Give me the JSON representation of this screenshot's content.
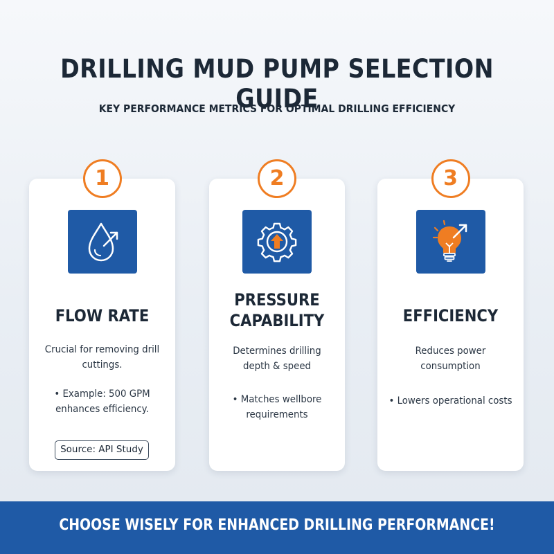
{
  "header": {
    "title": "DRILLING MUD PUMP SELECTION GUIDE",
    "subtitle": "KEY PERFORMANCE METRICS FOR OPTIMAL DRILLING EFFICIENCY"
  },
  "cards": [
    {
      "number": "1",
      "icon": "water-drop-arrow-icon",
      "title": "FLOW RATE",
      "description": "Crucial for removing drill cuttings.",
      "bullet": "• Example: 500 GPM enhances efficiency.",
      "source": "Source: API Study"
    },
    {
      "number": "2",
      "icon": "gear-arrow-up-icon",
      "title": "PRESSURE CAPABILITY",
      "description": "Determines drilling depth & speed",
      "bullet": "• Matches wellbore requirements"
    },
    {
      "number": "3",
      "icon": "lightbulb-arrow-icon",
      "title": "EFFICIENCY",
      "description": "Reduces power consumption",
      "bullet": "• Lowers operational costs"
    }
  ],
  "footer": {
    "text": "CHOOSE WISELY FOR ENHANCED DRILLING PERFORMANCE!"
  },
  "colors": {
    "primary_blue": "#1f5aa6",
    "accent_orange": "#ef7d22",
    "text_dark": "#1c2836"
  }
}
